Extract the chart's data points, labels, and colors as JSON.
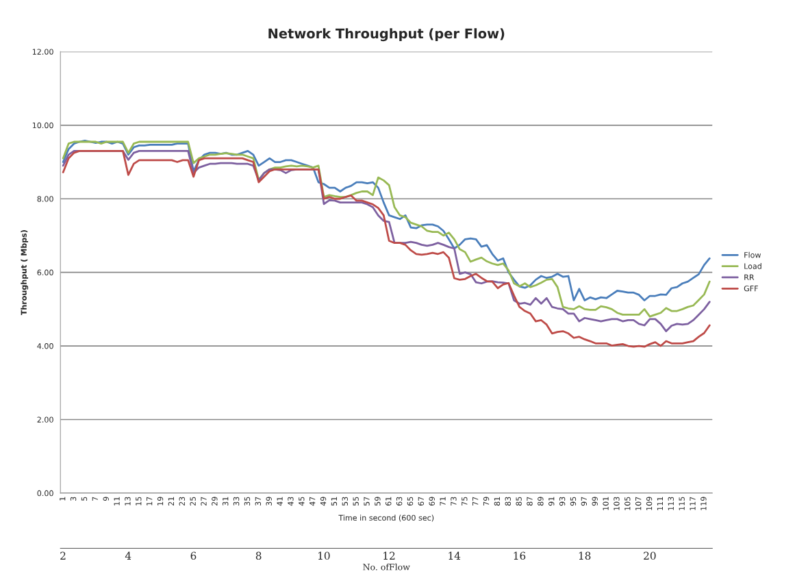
{
  "chart_data": {
    "type": "line",
    "title": "Network Throughput (per Flow)",
    "xlabel": "Time in second (600 sec)",
    "ylabel": "Throughput ( Mbps)",
    "x2label": "No. ofFlow",
    "categories": [
      "1",
      null,
      "3",
      null,
      "5",
      null,
      "7",
      null,
      "9",
      null,
      "11",
      null,
      "13",
      null,
      "15",
      null,
      "17",
      null,
      "19",
      null,
      "21",
      null,
      "23",
      null,
      "25",
      null,
      "27",
      null,
      "29",
      null,
      "31",
      null,
      "33",
      null,
      "35",
      null,
      "37",
      null,
      "39",
      null,
      "41",
      null,
      "43",
      null,
      "45",
      null,
      "47",
      null,
      "49",
      null,
      "51",
      null,
      "53",
      null,
      "55",
      null,
      "57",
      null,
      "59",
      null,
      "61",
      null,
      "63",
      null,
      "65",
      null,
      "67",
      null,
      "69",
      null,
      "71",
      null,
      "73",
      null,
      "75",
      null,
      "77",
      null,
      "79",
      null,
      "81",
      null,
      "83",
      null,
      "85",
      null,
      "87",
      null,
      "89",
      null,
      "91",
      null,
      "93",
      null,
      "95",
      null,
      "97",
      null,
      "99",
      null,
      "101",
      null,
      "103",
      null,
      "105",
      null,
      "107",
      null,
      "109",
      null,
      "111",
      null,
      "113",
      null,
      "115",
      null,
      "117",
      null,
      "119",
      null
    ],
    "series": [
      {
        "name": "Flow",
        "color": "#4a7ebb",
        "values": [
          9.0,
          9.35,
          9.5,
          9.55,
          9.58,
          9.55,
          9.52,
          9.55,
          9.55,
          9.5,
          9.55,
          9.5,
          9.2,
          9.4,
          9.45,
          9.45,
          9.47,
          9.47,
          9.47,
          9.47,
          9.47,
          9.5,
          9.5,
          9.5,
          8.75,
          9.05,
          9.2,
          9.25,
          9.25,
          9.22,
          9.25,
          9.2,
          9.2,
          9.25,
          9.3,
          9.2,
          8.9,
          9.0,
          9.1,
          9.0,
          9.0,
          9.05,
          9.05,
          9.0,
          8.95,
          8.9,
          8.85,
          8.45,
          8.4,
          8.3,
          8.3,
          8.2,
          8.3,
          8.35,
          8.45,
          8.45,
          8.42,
          8.45,
          8.3,
          7.9,
          7.55,
          7.5,
          7.45,
          7.55,
          7.22,
          7.2,
          7.28,
          7.3,
          7.3,
          7.25,
          7.13,
          6.9,
          6.65,
          6.75,
          6.9,
          6.92,
          6.9,
          6.7,
          6.74,
          6.5,
          6.32,
          6.38,
          6.0,
          5.8,
          5.62,
          5.58,
          5.65,
          5.8,
          5.9,
          5.85,
          5.88,
          5.96,
          5.88,
          5.9,
          5.24,
          5.55,
          5.24,
          5.32,
          5.27,
          5.32,
          5.3,
          5.4,
          5.5,
          5.48,
          5.45,
          5.45,
          5.39,
          5.24,
          5.36,
          5.36,
          5.4,
          5.39,
          5.57,
          5.6,
          5.7,
          5.75,
          5.85,
          5.95,
          6.2,
          6.38
        ]
      },
      {
        "name": "Load",
        "color": "#98b954",
        "values": [
          9.1,
          9.5,
          9.55,
          9.55,
          9.55,
          9.55,
          9.55,
          9.5,
          9.55,
          9.55,
          9.55,
          9.55,
          9.25,
          9.5,
          9.55,
          9.55,
          9.55,
          9.55,
          9.55,
          9.55,
          9.55,
          9.55,
          9.55,
          9.55,
          8.97,
          9.1,
          9.15,
          9.2,
          9.2,
          9.22,
          9.24,
          9.22,
          9.2,
          9.2,
          9.15,
          9.1,
          8.52,
          8.7,
          8.8,
          8.85,
          8.85,
          8.88,
          8.9,
          8.88,
          8.9,
          8.88,
          8.85,
          8.9,
          8.05,
          8.1,
          8.07,
          8.05,
          8.05,
          8.1,
          8.16,
          8.2,
          8.2,
          8.1,
          8.58,
          8.5,
          8.37,
          7.77,
          7.55,
          7.5,
          7.35,
          7.3,
          7.25,
          7.13,
          7.1,
          7.1,
          7.0,
          7.08,
          6.9,
          6.63,
          6.55,
          6.29,
          6.35,
          6.4,
          6.3,
          6.24,
          6.2,
          6.24,
          6.05,
          5.7,
          5.62,
          5.7,
          5.6,
          5.65,
          5.72,
          5.8,
          5.82,
          5.6,
          5.06,
          5.02,
          5.0,
          5.08,
          5.0,
          4.98,
          4.98,
          5.08,
          5.05,
          5.0,
          4.9,
          4.85,
          4.85,
          4.85,
          4.85,
          5.0,
          4.8,
          4.85,
          4.9,
          5.03,
          4.95,
          4.95,
          5.0,
          5.06,
          5.1,
          5.25,
          5.4,
          5.75
        ]
      },
      {
        "name": "RR",
        "color": "#7d60a0",
        "values": [
          8.9,
          9.2,
          9.3,
          9.3,
          9.3,
          9.3,
          9.3,
          9.3,
          9.3,
          9.3,
          9.3,
          9.3,
          9.06,
          9.25,
          9.3,
          9.3,
          9.3,
          9.3,
          9.3,
          9.3,
          9.3,
          9.3,
          9.3,
          9.3,
          8.7,
          8.85,
          8.9,
          8.95,
          8.95,
          8.97,
          8.97,
          8.97,
          8.95,
          8.95,
          8.95,
          8.9,
          8.5,
          8.7,
          8.8,
          8.8,
          8.78,
          8.7,
          8.78,
          8.8,
          8.8,
          8.8,
          8.8,
          8.8,
          7.86,
          7.96,
          7.95,
          7.9,
          7.9,
          7.9,
          7.9,
          7.9,
          7.85,
          7.77,
          7.55,
          7.4,
          7.37,
          6.8,
          6.8,
          6.8,
          6.83,
          6.8,
          6.75,
          6.72,
          6.75,
          6.8,
          6.75,
          6.69,
          6.65,
          5.96,
          6.0,
          5.95,
          5.73,
          5.7,
          5.75,
          5.76,
          5.73,
          5.72,
          5.7,
          5.24,
          5.15,
          5.17,
          5.12,
          5.3,
          5.15,
          5.3,
          5.06,
          5.02,
          5.0,
          4.88,
          4.88,
          4.67,
          4.76,
          4.73,
          4.7,
          4.67,
          4.7,
          4.73,
          4.73,
          4.67,
          4.7,
          4.7,
          4.6,
          4.56,
          4.73,
          4.73,
          4.6,
          4.4,
          4.55,
          4.6,
          4.58,
          4.6,
          4.7,
          4.85,
          5.0,
          5.2
        ]
      },
      {
        "name": "GFF",
        "color": "#be4b48",
        "values": [
          8.72,
          9.1,
          9.25,
          9.3,
          9.3,
          9.3,
          9.3,
          9.3,
          9.3,
          9.3,
          9.3,
          9.3,
          8.65,
          8.95,
          9.05,
          9.05,
          9.05,
          9.05,
          9.05,
          9.05,
          9.05,
          9.0,
          9.05,
          9.05,
          8.6,
          9.05,
          9.1,
          9.1,
          9.1,
          9.1,
          9.1,
          9.1,
          9.1,
          9.1,
          9.05,
          9.0,
          8.45,
          8.6,
          8.75,
          8.8,
          8.8,
          8.8,
          8.8,
          8.8,
          8.8,
          8.8,
          8.8,
          8.8,
          8.0,
          8.05,
          8.0,
          8.0,
          8.05,
          8.09,
          7.95,
          7.95,
          7.9,
          7.85,
          7.75,
          7.55,
          6.86,
          6.8,
          6.8,
          6.75,
          6.6,
          6.5,
          6.48,
          6.5,
          6.53,
          6.5,
          6.55,
          6.4,
          5.84,
          5.8,
          5.82,
          5.9,
          5.96,
          5.85,
          5.76,
          5.75,
          5.57,
          5.67,
          5.71,
          5.37,
          5.06,
          4.95,
          4.88,
          4.67,
          4.7,
          4.58,
          4.34,
          4.38,
          4.4,
          4.34,
          4.22,
          4.25,
          4.18,
          4.13,
          4.07,
          4.07,
          4.07,
          4.01,
          4.03,
          4.05,
          4.0,
          3.98,
          4.0,
          3.98,
          4.05,
          4.1,
          4.0,
          4.13,
          4.07,
          4.07,
          4.07,
          4.1,
          4.13,
          4.25,
          4.35,
          4.56
        ]
      }
    ],
    "ylim": [
      0,
      12
    ],
    "yticks": [
      {
        "value": 0,
        "label": "0.00"
      },
      {
        "value": 2,
        "label": "2.00"
      },
      {
        "value": 4,
        "label": "4.00"
      },
      {
        "value": 6,
        "label": "6.00"
      },
      {
        "value": 8,
        "label": "8.00"
      },
      {
        "value": 10,
        "label": "10.00"
      },
      {
        "value": 12,
        "label": "12.00"
      }
    ],
    "x2lim": [
      1.92,
      21.92
    ],
    "x2ticks": [
      2,
      4,
      6,
      8,
      10,
      12,
      14,
      16,
      18,
      20
    ],
    "grid": "y",
    "legend": "right",
    "marker": "none",
    "line_style": "solid"
  }
}
